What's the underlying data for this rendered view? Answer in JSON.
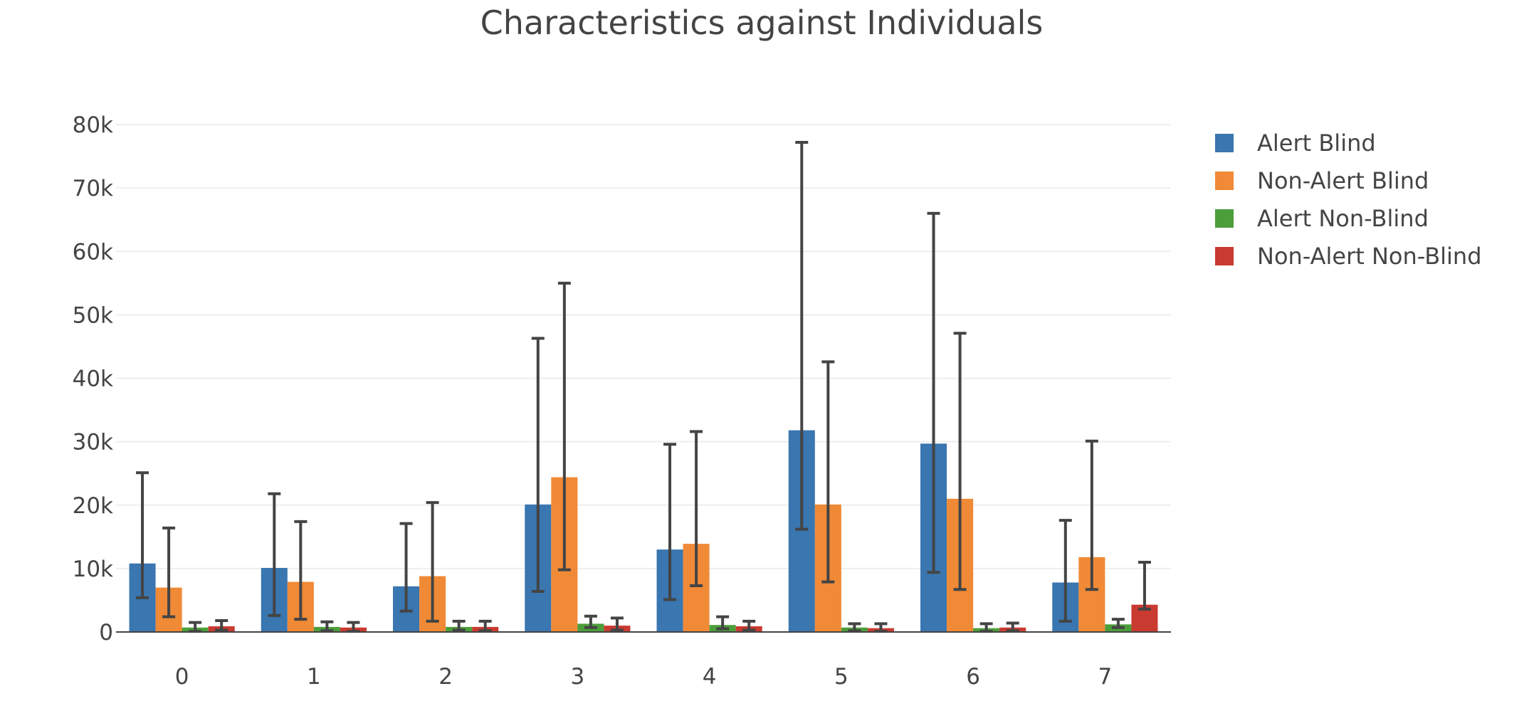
{
  "chart_data": {
    "type": "bar",
    "title": "Characteristics against Individuals",
    "xlabel": "",
    "ylabel": "",
    "categories": [
      "0",
      "1",
      "2",
      "3",
      "4",
      "5",
      "6",
      "7"
    ],
    "ylim": [
      0,
      80000
    ],
    "y_ticks": [
      0,
      10000,
      20000,
      30000,
      40000,
      50000,
      60000,
      70000,
      80000
    ],
    "y_tick_labels": [
      "0",
      "10k",
      "20k",
      "30k",
      "40k",
      "50k",
      "60k",
      "70k",
      "80k"
    ],
    "grid": true,
    "legend_position": "top-right",
    "series": [
      {
        "name": "Alert Blind",
        "color": "#3a76b0",
        "values": [
          10800,
          10100,
          7200,
          20100,
          13000,
          31800,
          29700,
          7800
        ],
        "error_low": [
          5400,
          2600,
          3300,
          6400,
          5100,
          16200,
          9400,
          1700
        ],
        "error_high": [
          25100,
          21800,
          17100,
          46300,
          29600,
          77200,
          66000,
          17600
        ]
      },
      {
        "name": "Non-Alert Blind",
        "color": "#f08a36",
        "values": [
          7000,
          7900,
          8800,
          24400,
          13900,
          20100,
          21000,
          11800
        ],
        "error_low": [
          2400,
          2000,
          1700,
          9800,
          7300,
          7900,
          6700,
          6700
        ],
        "error_high": [
          16400,
          17400,
          20400,
          55000,
          31600,
          42600,
          47100,
          30100
        ]
      },
      {
        "name": "Alert Non-Blind",
        "color": "#4c9e3a",
        "values": [
          700,
          800,
          800,
          1300,
          1100,
          700,
          600,
          1200
        ],
        "error_low": [
          100,
          200,
          300,
          700,
          500,
          200,
          100,
          700
        ],
        "error_high": [
          1500,
          1600,
          1700,
          2500,
          2400,
          1300,
          1300,
          2000
        ]
      },
      {
        "name": "Non-Alert Non-Blind",
        "color": "#c93a30",
        "values": [
          900,
          700,
          800,
          1000,
          900,
          600,
          700,
          4300
        ],
        "error_low": [
          300,
          100,
          200,
          300,
          300,
          100,
          200,
          3600
        ],
        "error_high": [
          1800,
          1500,
          1700,
          2200,
          1700,
          1300,
          1400,
          11000
        ]
      }
    ]
  }
}
